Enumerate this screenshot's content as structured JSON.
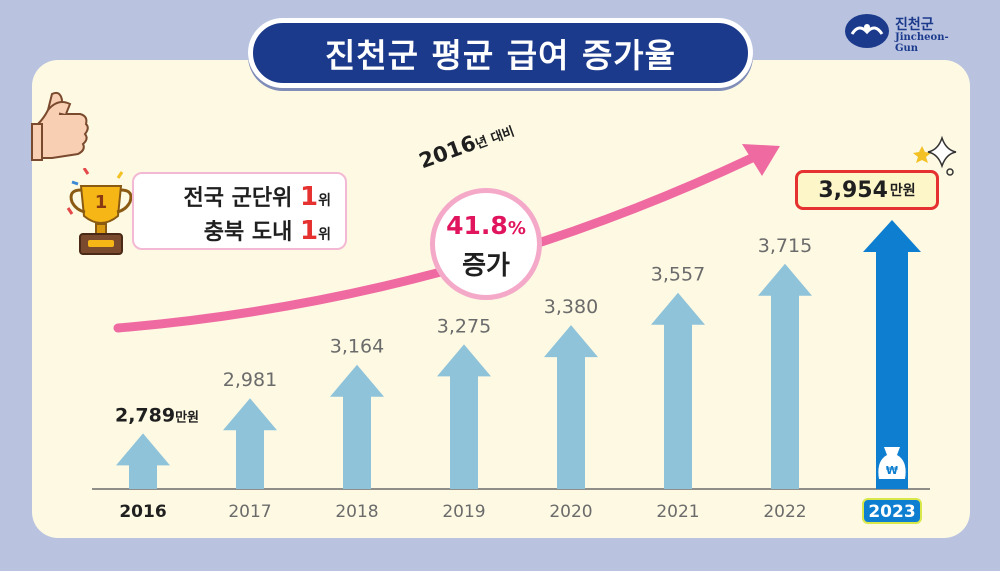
{
  "title": "진천군 평균 급여 증가율",
  "logo": {
    "name": "진천군",
    "sub": "Jincheon-Gun"
  },
  "rank": {
    "line1_text": "전국 군단위 ",
    "line1_num": "1",
    "line1_suffix": "위",
    "line2_text": "충북 도내 ",
    "line2_num": "1",
    "line2_suffix": "위",
    "trophy_number": "1"
  },
  "growth": {
    "base_year": "2016",
    "base_suffix": "년 대비",
    "percent": "41.8",
    "percent_sign": "%",
    "increase_label": "증가"
  },
  "callout": {
    "value": "3,954",
    "unit": "만원"
  },
  "colors": {
    "title_bg": "#1c3a8c",
    "bar_regular": "#8fc3da",
    "bar_highlight": "#0e7fd0",
    "trend_arrow": "#f06aa2",
    "accent_red": "#e5312f",
    "panel_bg": "#fdf9e3",
    "background": "#b9c3e0"
  },
  "icons": [
    "thumbs-up-icon",
    "trophy-icon",
    "money-bag-icon",
    "sparkle-icon",
    "trend-arrow-icon",
    "logo-icon"
  ],
  "chart_data": {
    "type": "bar",
    "title": "진천군 평균 급여 증가율",
    "categories": [
      "2016",
      "2017",
      "2018",
      "2019",
      "2020",
      "2021",
      "2022",
      "2023"
    ],
    "values": [
      2789,
      2981,
      3164,
      3275,
      3380,
      3557,
      3715,
      3954
    ],
    "value_labels": [
      "2,789",
      "2,981",
      "3,164",
      "3,275",
      "3,380",
      "3,557",
      "3,715",
      "3,954"
    ],
    "first_label_unit": "만원",
    "highlight_category": "2023",
    "money_symbol": "₩",
    "grid": false,
    "legend": "none"
  }
}
